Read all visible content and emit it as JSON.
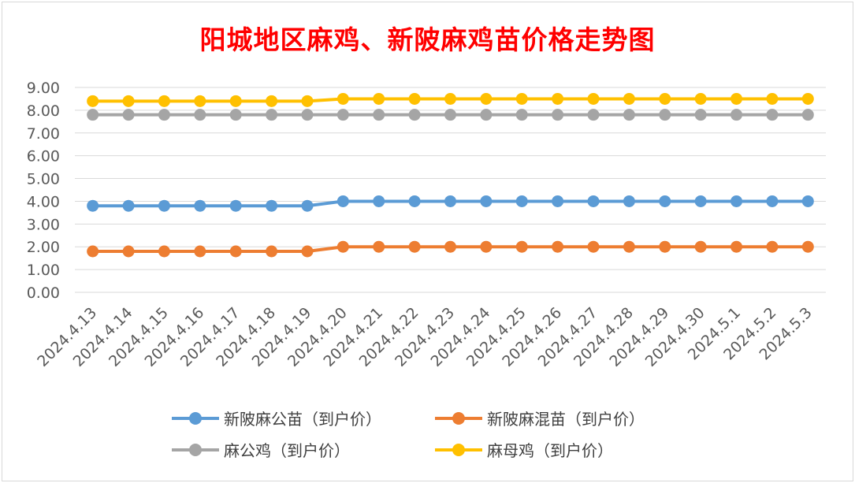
{
  "chart_data": {
    "type": "line",
    "title": "阳城地区麻鸡、新陂麻鸡苗价格走势图",
    "categories": [
      "2024.4.13",
      "2024.4.14",
      "2024.4.15",
      "2024.4.16",
      "2024.4.17",
      "2024.4.18",
      "2024.4.19",
      "2024.4.20",
      "2024.4.21",
      "2024.4.22",
      "2024.4.23",
      "2024.4.24",
      "2024.4.25",
      "2024.4.26",
      "2024.4.27",
      "2024.4.28",
      "2024.4.29",
      "2024.4.30",
      "2024.5.1",
      "2024.5.2",
      "2024.5.3"
    ],
    "yticks": [
      "0.00",
      "1.00",
      "2.00",
      "3.00",
      "4.00",
      "5.00",
      "6.00",
      "7.00",
      "8.00",
      "9.00"
    ],
    "ylim": [
      0,
      9
    ],
    "grid": true,
    "legend_position": "bottom",
    "series": [
      {
        "name": "新陂麻公苗（到户价）",
        "color": "#5b9bd5",
        "values": [
          3.8,
          3.8,
          3.8,
          3.8,
          3.8,
          3.8,
          3.8,
          4.0,
          4.0,
          4.0,
          4.0,
          4.0,
          4.0,
          4.0,
          4.0,
          4.0,
          4.0,
          4.0,
          4.0,
          4.0,
          4.0
        ]
      },
      {
        "name": "新陂麻混苗（到户价）",
        "color": "#ed7d31",
        "values": [
          1.8,
          1.8,
          1.8,
          1.8,
          1.8,
          1.8,
          1.8,
          2.0,
          2.0,
          2.0,
          2.0,
          2.0,
          2.0,
          2.0,
          2.0,
          2.0,
          2.0,
          2.0,
          2.0,
          2.0,
          2.0
        ]
      },
      {
        "name": "麻公鸡（到户价）",
        "color": "#a5a5a5",
        "values": [
          7.8,
          7.8,
          7.8,
          7.8,
          7.8,
          7.8,
          7.8,
          7.8,
          7.8,
          7.8,
          7.8,
          7.8,
          7.8,
          7.8,
          7.8,
          7.8,
          7.8,
          7.8,
          7.8,
          7.8,
          7.8
        ]
      },
      {
        "name": "麻母鸡（到户价）",
        "color": "#ffc000",
        "values": [
          8.4,
          8.4,
          8.4,
          8.4,
          8.4,
          8.4,
          8.4,
          8.5,
          8.5,
          8.5,
          8.5,
          8.5,
          8.5,
          8.5,
          8.5,
          8.5,
          8.5,
          8.5,
          8.5,
          8.5,
          8.5
        ]
      }
    ]
  }
}
